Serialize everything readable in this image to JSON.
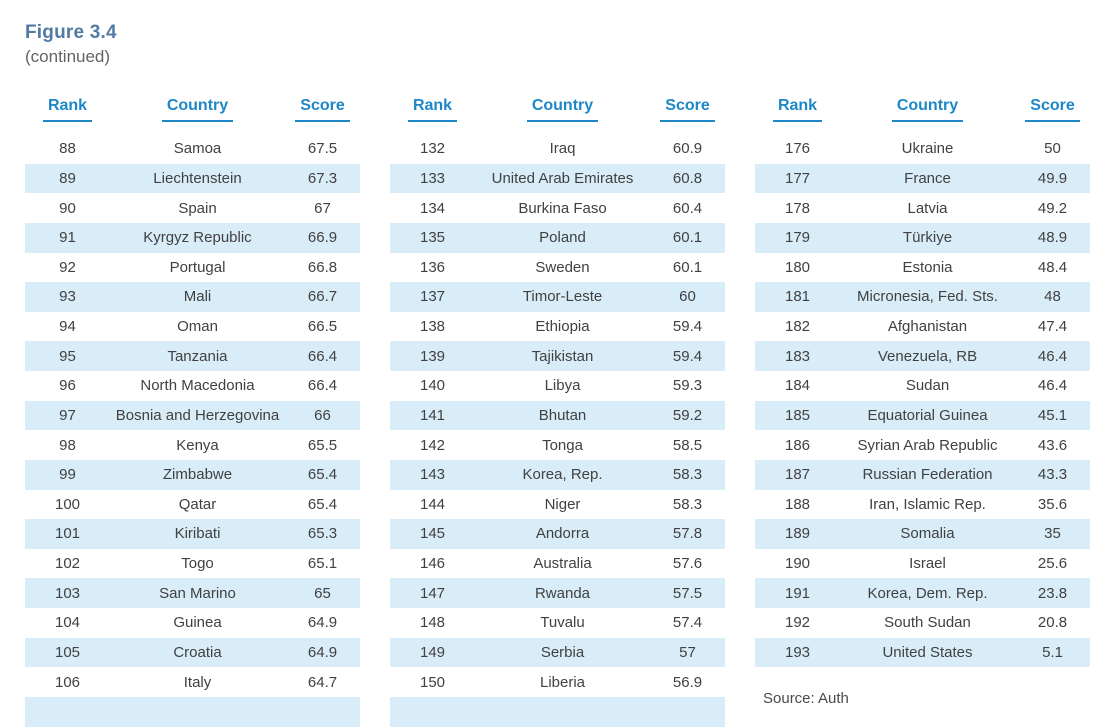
{
  "figure": {
    "title": "Figure 3.4",
    "subtitle": "(continued)"
  },
  "column_headers": [
    "Rank",
    "Country",
    "Score"
  ],
  "tables": [
    {
      "rows": [
        [
          "88",
          "Samoa",
          "67.5"
        ],
        [
          "89",
          "Liechtenstein",
          "67.3"
        ],
        [
          "90",
          "Spain",
          "67"
        ],
        [
          "91",
          "Kyrgyz Republic",
          "66.9"
        ],
        [
          "92",
          "Portugal",
          "66.8"
        ],
        [
          "93",
          "Mali",
          "66.7"
        ],
        [
          "94",
          "Oman",
          "66.5"
        ],
        [
          "95",
          "Tanzania",
          "66.4"
        ],
        [
          "96",
          "North Macedonia",
          "66.4"
        ],
        [
          "97",
          "Bosnia and Herzegovina",
          "66"
        ],
        [
          "98",
          "Kenya",
          "65.5"
        ],
        [
          "99",
          "Zimbabwe",
          "65.4"
        ],
        [
          "100",
          "Qatar",
          "65.4"
        ],
        [
          "101",
          "Kiribati",
          "65.3"
        ],
        [
          "102",
          "Togo",
          "65.1"
        ],
        [
          "103",
          "San Marino",
          "65"
        ],
        [
          "104",
          "Guinea",
          "64.9"
        ],
        [
          "105",
          "Croatia",
          "64.9"
        ],
        [
          "106",
          "Italy",
          "64.7"
        ]
      ],
      "partial_next_row": true
    },
    {
      "rows": [
        [
          "132",
          "Iraq",
          "60.9"
        ],
        [
          "133",
          "United Arab Emirates",
          "60.8"
        ],
        [
          "134",
          "Burkina Faso",
          "60.4"
        ],
        [
          "135",
          "Poland",
          "60.1"
        ],
        [
          "136",
          "Sweden",
          "60.1"
        ],
        [
          "137",
          "Timor-Leste",
          "60"
        ],
        [
          "138",
          "Ethiopia",
          "59.4"
        ],
        [
          "139",
          "Tajikistan",
          "59.4"
        ],
        [
          "140",
          "Libya",
          "59.3"
        ],
        [
          "141",
          "Bhutan",
          "59.2"
        ],
        [
          "142",
          "Tonga",
          "58.5"
        ],
        [
          "143",
          "Korea, Rep.",
          "58.3"
        ],
        [
          "144",
          "Niger",
          "58.3"
        ],
        [
          "145",
          "Andorra",
          "57.8"
        ],
        [
          "146",
          "Australia",
          "57.6"
        ],
        [
          "147",
          "Rwanda",
          "57.5"
        ],
        [
          "148",
          "Tuvalu",
          "57.4"
        ],
        [
          "149",
          "Serbia",
          "57"
        ],
        [
          "150",
          "Liberia",
          "56.9"
        ]
      ],
      "partial_next_row": true
    },
    {
      "rows": [
        [
          "176",
          "Ukraine",
          "50"
        ],
        [
          "177",
          "France",
          "49.9"
        ],
        [
          "178",
          "Latvia",
          "49.2"
        ],
        [
          "179",
          "Türkiye",
          "48.9"
        ],
        [
          "180",
          "Estonia",
          "48.4"
        ],
        [
          "181",
          "Micronesia, Fed. Sts.",
          "48"
        ],
        [
          "182",
          "Afghanistan",
          "47.4"
        ],
        [
          "183",
          "Venezuela, RB",
          "46.4"
        ],
        [
          "184",
          "Sudan",
          "46.4"
        ],
        [
          "185",
          "Equatorial Guinea",
          "45.1"
        ],
        [
          "186",
          "Syrian Arab Republic",
          "43.6"
        ],
        [
          "187",
          "Russian Federation",
          "43.3"
        ],
        [
          "188",
          "Iran, Islamic Rep.",
          "35.6"
        ],
        [
          "189",
          "Somalia",
          "35"
        ],
        [
          "190",
          "Israel",
          "25.6"
        ],
        [
          "191",
          "Korea, Dem. Rep.",
          "23.8"
        ],
        [
          "192",
          "South Sudan",
          "20.8"
        ],
        [
          "193",
          "United States",
          "5.1"
        ]
      ],
      "partial_next_row": false
    }
  ],
  "source_note_partial": "Source: Auth",
  "colors": {
    "header_blue": "#1d87c8",
    "title_blue": "#527ba3",
    "row_shade": "#d9edf9",
    "body_text": "#414141",
    "subtitle_gray": "#636363"
  }
}
